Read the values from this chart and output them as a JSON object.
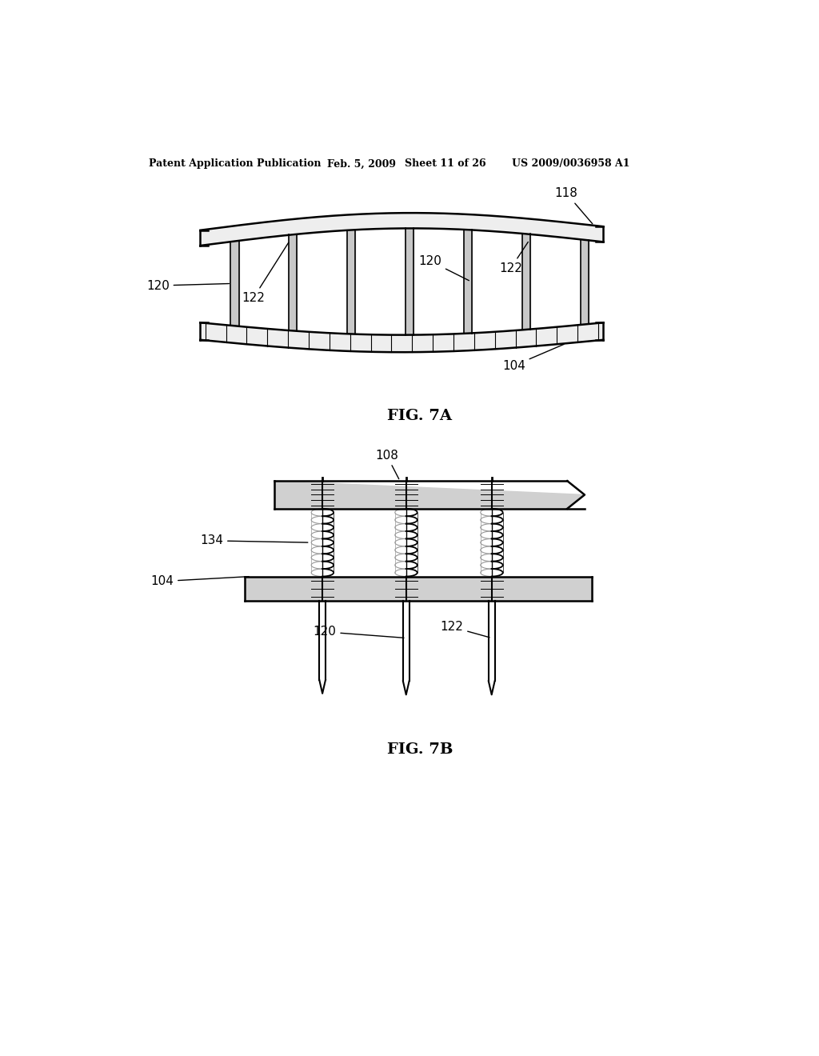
{
  "bg_color": "#ffffff",
  "header_text": "Patent Application Publication",
  "header_date": "Feb. 5, 2009",
  "header_sheet": "Sheet 11 of 26",
  "header_patent": "US 2009/0036958 A1",
  "fig7a_label": "FIG. 7A",
  "fig7b_label": "FIG. 7B",
  "black": "#000000",
  "gray_fill": "#d8d8d8",
  "light_gray": "#eeeeee"
}
